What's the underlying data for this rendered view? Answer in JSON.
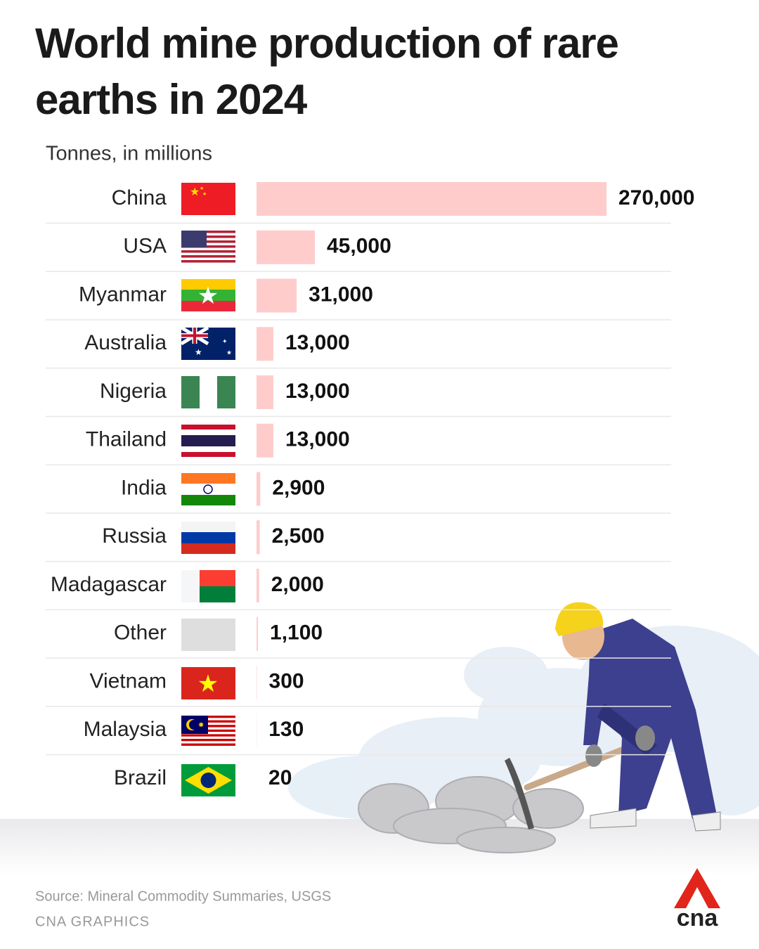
{
  "chart_data": {
    "type": "bar",
    "title": "World mine production of rare earths in 2024",
    "subtitle": "Tonnes, in millions",
    "categories": [
      "China",
      "USA",
      "Myanmar",
      "Australia",
      "Nigeria",
      "Thailand",
      "India",
      "Russia",
      "Madagascar",
      "Other",
      "Vietnam",
      "Malaysia",
      "Brazil"
    ],
    "values": [
      270000,
      45000,
      31000,
      13000,
      13000,
      13000,
      2900,
      2500,
      2000,
      1100,
      300,
      130,
      20
    ],
    "value_labels": [
      "270,000",
      "45,000",
      "31,000",
      "13,000",
      "13,000",
      "13,000",
      "2,900",
      "2,500",
      "2,000",
      "1,100",
      "300",
      "130",
      "20"
    ],
    "color": "#ffcccc",
    "source": "Source: Mineral Commodity Summaries, USGS",
    "credit": "CNA GRAPHICS",
    "logo": "cna"
  }
}
